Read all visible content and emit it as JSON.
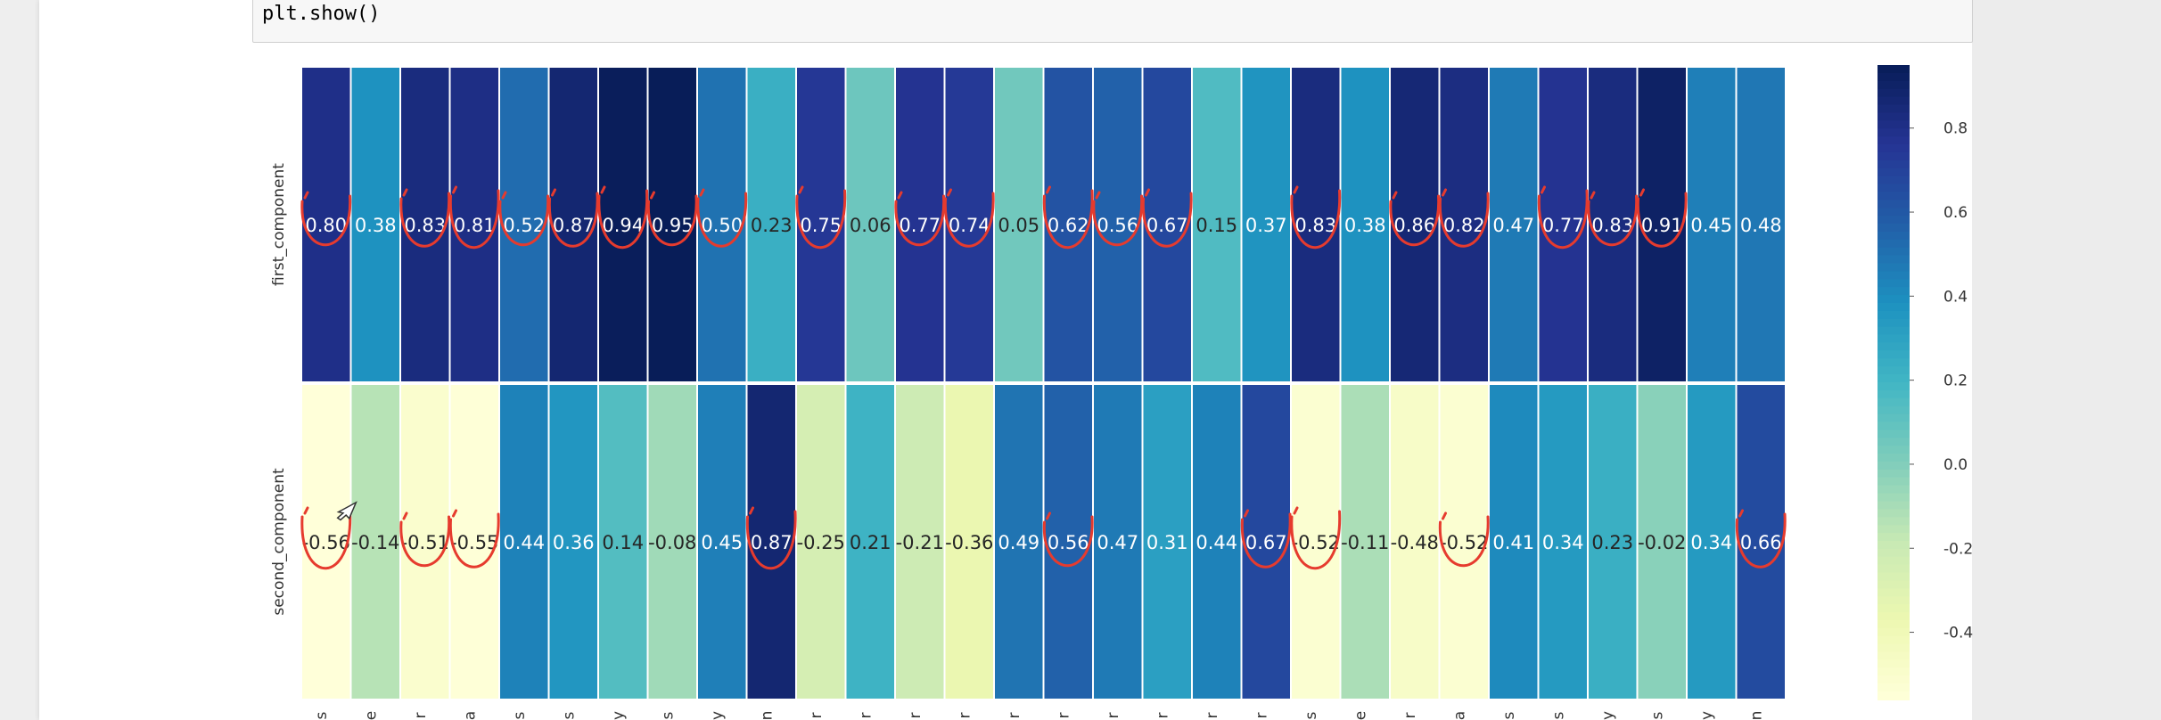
{
  "notebook": {
    "code_line": "plt.show()"
  },
  "chart_data": {
    "type": "heatmap",
    "rows": [
      "first_component",
      "second_component"
    ],
    "values": [
      [
        0.8,
        0.38,
        0.83,
        0.81,
        0.52,
        0.87,
        0.94,
        0.95,
        0.5,
        0.23,
        0.75,
        0.06,
        0.77,
        0.74,
        0.05,
        0.62,
        0.56,
        0.67,
        0.15,
        0.37,
        0.83,
        0.38,
        0.86,
        0.82,
        0.47,
        0.77,
        0.83,
        0.91,
        0.45,
        0.48
      ],
      [
        -0.56,
        -0.14,
        -0.51,
        -0.55,
        0.44,
        0.36,
        0.14,
        -0.08,
        0.45,
        0.87,
        -0.25,
        0.21,
        -0.21,
        -0.36,
        0.49,
        0.56,
        0.47,
        0.31,
        0.44,
        0.67,
        -0.52,
        -0.11,
        -0.48,
        -0.52,
        0.41,
        0.34,
        0.23,
        -0.02,
        0.34,
        0.66
      ]
    ],
    "column_label_endings": [
      "s",
      "e",
      "r",
      "a",
      "s",
      "s",
      "y",
      "s",
      "y",
      "n",
      "r",
      "r",
      "r",
      "r",
      "r",
      "r",
      "r",
      "r",
      "r",
      "r",
      "s",
      "e",
      "r",
      "a",
      "s",
      "s",
      "y",
      "s",
      "y",
      "n"
    ],
    "colormap": "YlGnBu",
    "vmin": -0.56,
    "vmax": 0.95,
    "colorbar_ticks": [
      0.8,
      0.6,
      0.4,
      0.2,
      0.0,
      -0.2,
      -0.4
    ],
    "grid": false,
    "annotation_color": "#e63b2e"
  },
  "annotations": {
    "circled_cells": [
      [
        0,
        0
      ],
      [
        0,
        2
      ],
      [
        0,
        3
      ],
      [
        0,
        4
      ],
      [
        0,
        5
      ],
      [
        0,
        6
      ],
      [
        0,
        7
      ],
      [
        0,
        8
      ],
      [
        0,
        10
      ],
      [
        0,
        12
      ],
      [
        0,
        13
      ],
      [
        0,
        15
      ],
      [
        0,
        16
      ],
      [
        0,
        17
      ],
      [
        0,
        20
      ],
      [
        0,
        22
      ],
      [
        0,
        23
      ],
      [
        0,
        25
      ],
      [
        0,
        26
      ],
      [
        0,
        27
      ],
      [
        1,
        0
      ],
      [
        1,
        2
      ],
      [
        1,
        3
      ],
      [
        1,
        9
      ],
      [
        1,
        15
      ],
      [
        1,
        19
      ],
      [
        1,
        20
      ],
      [
        1,
        23
      ],
      [
        1,
        29
      ]
    ]
  }
}
